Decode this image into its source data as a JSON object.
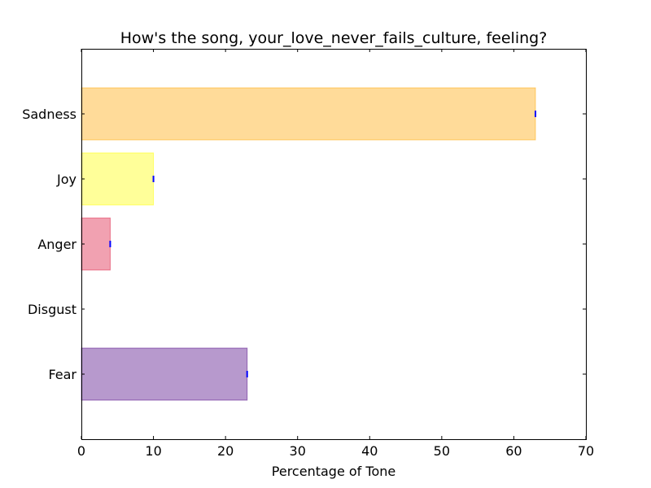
{
  "chart_data": {
    "type": "bar",
    "orientation": "horizontal",
    "title": "How's the song, your_love_never_fails_culture, feeling?",
    "xlabel": "Percentage of Tone",
    "ylabel": "",
    "xlim": [
      0,
      70
    ],
    "xticks": [
      0,
      10,
      20,
      30,
      40,
      50,
      60,
      70
    ],
    "grid": false,
    "categories": [
      "Sadness",
      "Joy",
      "Anger",
      "Disgust",
      "Fear"
    ],
    "values": [
      63,
      10,
      4,
      0,
      23
    ],
    "colors": [
      "#ffa500",
      "#ffff00",
      "#dc143c",
      "#808080",
      "#4b0082"
    ],
    "bar_alpha": 0.4,
    "error_marker_color": "#0000ff"
  }
}
